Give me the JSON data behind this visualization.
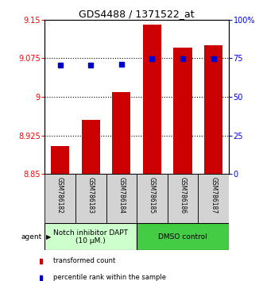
{
  "title": "GDS4488 / 1371522_at",
  "samples": [
    "GSM786182",
    "GSM786183",
    "GSM786184",
    "GSM786185",
    "GSM786186",
    "GSM786187"
  ],
  "bar_values": [
    8.905,
    8.955,
    9.01,
    9.14,
    9.095,
    9.1
  ],
  "percentile_values": [
    0.706,
    0.706,
    0.71,
    0.745,
    0.745,
    0.745
  ],
  "ylim_left": [
    8.85,
    9.15
  ],
  "ylim_right": [
    0.0,
    1.0
  ],
  "yticks_left": [
    8.85,
    8.925,
    9.0,
    9.075,
    9.15
  ],
  "ytick_labels_left": [
    "8.85",
    "8.925",
    "9",
    "9.075",
    "9.15"
  ],
  "yticks_right": [
    0.0,
    0.25,
    0.5,
    0.75,
    1.0
  ],
  "ytick_labels_right": [
    "0",
    "25",
    "50",
    "75",
    "100%"
  ],
  "hlines": [
    9.075,
    9.0,
    8.925
  ],
  "bar_color": "#cc0000",
  "percentile_color": "#0000cc",
  "bar_width": 0.6,
  "group1_label": "Notch inhibitor DAPT\n(10 μM.)",
  "group2_label": "DMSO control",
  "group1_color": "#ccffcc",
  "group2_color": "#44cc44",
  "legend_bar_label": "transformed count",
  "legend_pct_label": "percentile rank within the sample",
  "agent_label": "agent",
  "title_fontsize": 9,
  "tick_fontsize": 7,
  "sample_fontsize": 5.5,
  "group_fontsize": 6.5,
  "legend_fontsize": 6
}
